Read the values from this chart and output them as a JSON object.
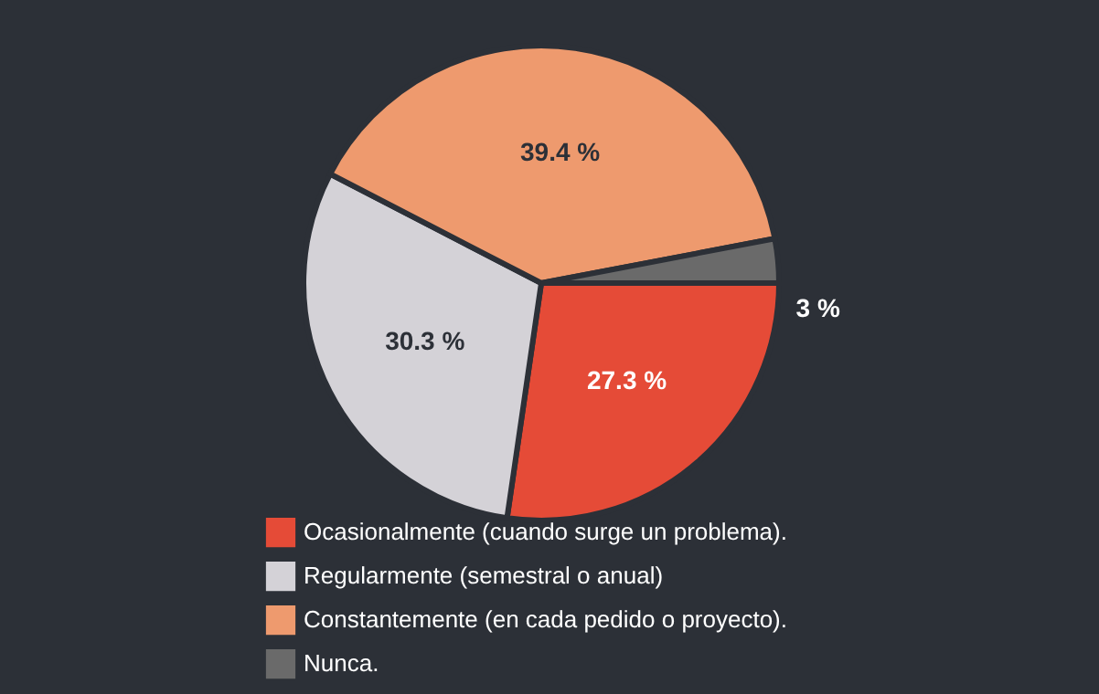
{
  "chart_data": {
    "type": "pie",
    "categories": [
      "Ocasionalmente (cuando surge un problema).",
      "Regularmente (semestral o anual)",
      "Constantemente (en cada pedido o proyecto).",
      "Nunca."
    ],
    "values": [
      27.3,
      30.3,
      39.4,
      3
    ],
    "colors": [
      "#e54b37",
      "#d4d2d7",
      "#ee9a6e",
      "#6a6a6a"
    ],
    "value_labels": [
      "27.3 %",
      "30.3 %",
      "39.4 %",
      "3 %"
    ],
    "legend": "bottom"
  }
}
